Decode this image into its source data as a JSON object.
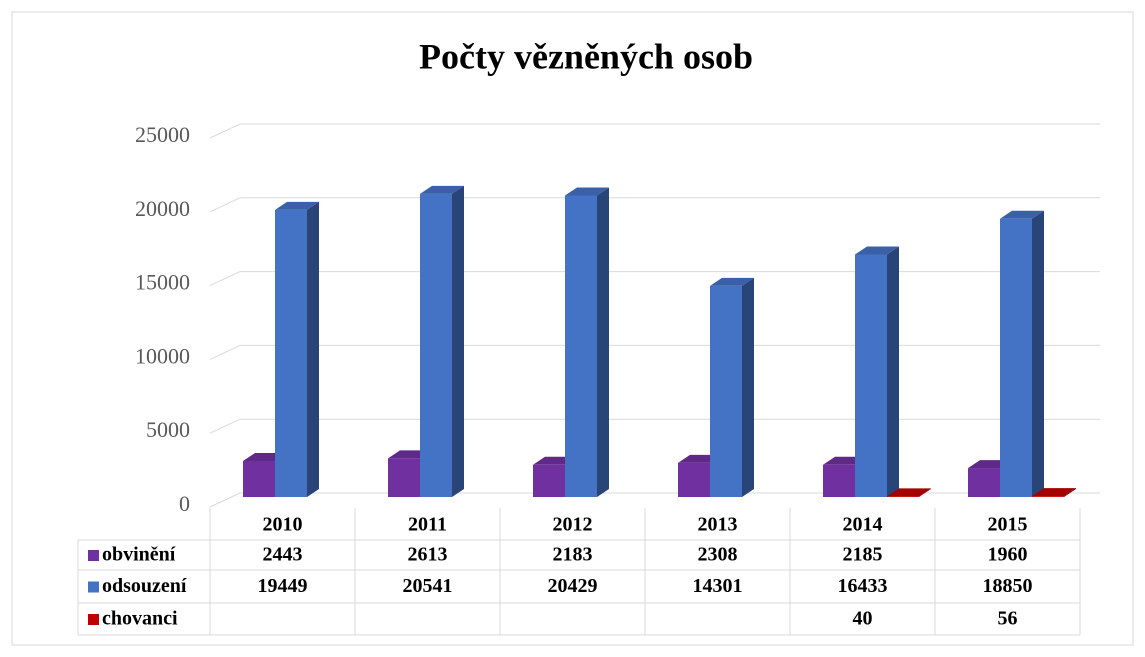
{
  "chart_data": {
    "type": "bar3d",
    "title": "Počty vězněných osob",
    "categories": [
      "2010",
      "2011",
      "2012",
      "2013",
      "2014",
      "2015"
    ],
    "series": [
      {
        "name": "obvinění",
        "color": "#7030a0",
        "values": [
          2443,
          2613,
          2183,
          2308,
          2185,
          1960
        ]
      },
      {
        "name": "odsouzení",
        "color": "#4472c4",
        "values": [
          19449,
          20541,
          20429,
          14301,
          16433,
          18850
        ]
      },
      {
        "name": "chovanci",
        "color": "#c00000",
        "values": [
          null,
          null,
          null,
          null,
          40,
          56
        ]
      }
    ],
    "ylim": [
      0,
      25000
    ],
    "yticks": [
      0,
      5000,
      10000,
      15000,
      20000,
      25000
    ],
    "grid": true,
    "data_table": true
  }
}
